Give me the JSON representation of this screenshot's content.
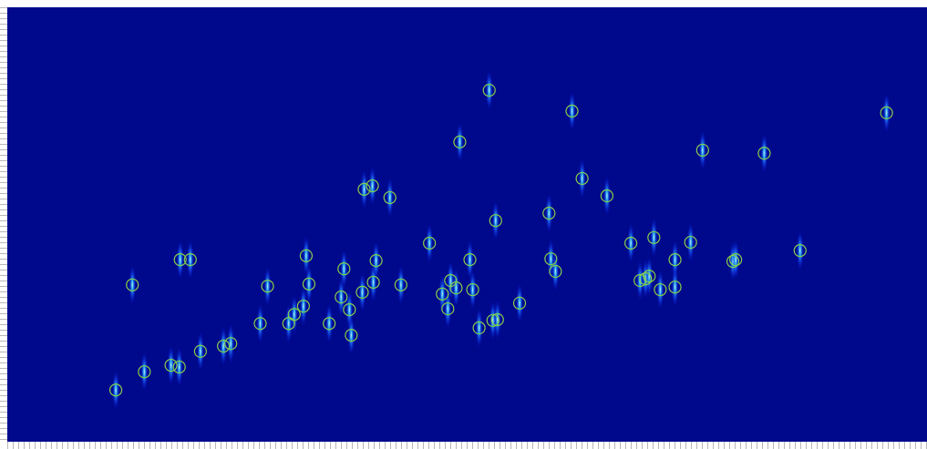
{
  "chart_data": {
    "type": "scatter",
    "color": "#86d04a",
    "background": "#00088c",
    "xlim": [
      0,
      100
    ],
    "ylim": [
      0,
      100
    ],
    "x": [
      11.8,
      13.6,
      14.9,
      17.8,
      18.7,
      18.8,
      19.9,
      21.0,
      23.5,
      24.3,
      27.5,
      28.3,
      30.6,
      31.2,
      32.2,
      32.5,
      32.8,
      35.0,
      36.3,
      36.6,
      37.2,
      37.4,
      38.6,
      38.8,
      39.7,
      39.8,
      40.1,
      41.6,
      42.8,
      45.9,
      47.3,
      47.9,
      48.2,
      48.8,
      49.2,
      50.3,
      50.6,
      51.3,
      52.4,
      52.8,
      53.1,
      53.3,
      55.7,
      58.9,
      59.1,
      59.6,
      61.4,
      62.5,
      65.2,
      67.8,
      68.8,
      69.4,
      69.8,
      70.3,
      71.0,
      72.6,
      72.6,
      74.3,
      75.6,
      78.9,
      79.2,
      82.3,
      86.2,
      95.6
    ],
    "values": [
      11.9,
      36.1,
      16.1,
      17.6,
      17.2,
      41.9,
      41.9,
      20.8,
      22.0,
      22.6,
      27.2,
      35.8,
      27.2,
      29.3,
      31.2,
      42.8,
      36.3,
      27.2,
      33.3,
      39.8,
      30.4,
      24.5,
      34.4,
      58.1,
      58.9,
      36.7,
      41.7,
      56.2,
      36.1,
      45.7,
      34.0,
      30.6,
      37.1,
      35.4,
      69.0,
      41.9,
      35.0,
      26.2,
      80.9,
      27.9,
      50.9,
      28.1,
      31.9,
      52.6,
      42.1,
      39.2,
      76.1,
      60.6,
      56.6,
      45.7,
      37.1,
      37.5,
      38.1,
      47.0,
      35.0,
      41.9,
      35.6,
      45.9,
      67.1,
      41.5,
      41.9,
      66.4,
      44.0,
      75.7
    ]
  }
}
